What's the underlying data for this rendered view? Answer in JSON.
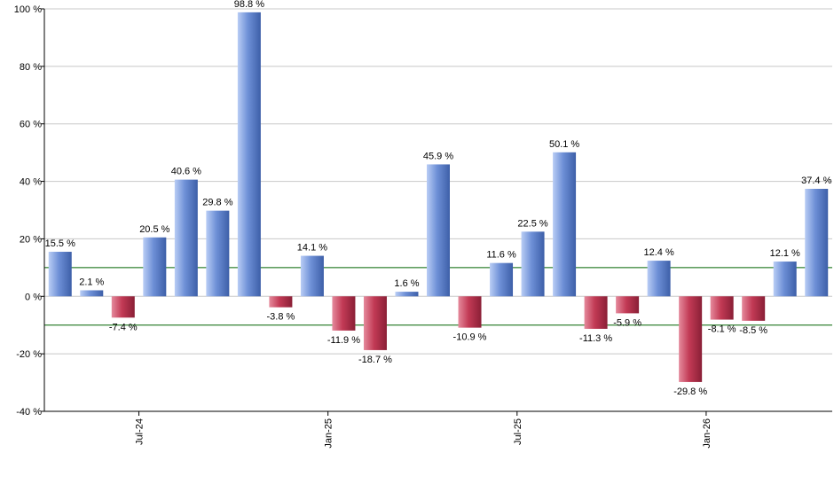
{
  "chart_data": {
    "type": "bar",
    "title": "",
    "xlabel": "",
    "ylabel": "",
    "ylim": [
      -40,
      100
    ],
    "yticks": [
      -40,
      -20,
      0,
      20,
      40,
      60,
      80,
      100
    ],
    "ytick_labels": [
      "-40 %",
      "-20 %",
      "0 %",
      "20 %",
      "40 %",
      "60 %",
      "80 %",
      "100 %"
    ],
    "x_tick_labels": [
      {
        "label": "Jul-24",
        "index": 2.5
      },
      {
        "label": "Jan-25",
        "index": 8.5
      },
      {
        "label": "Jul-25",
        "index": 14.5
      },
      {
        "label": "Jan-26",
        "index": 20.5
      }
    ],
    "values": [
      15.5,
      2.1,
      -7.4,
      20.5,
      40.6,
      29.8,
      98.8,
      -3.8,
      14.1,
      -11.9,
      -18.7,
      1.6,
      45.9,
      -10.9,
      11.6,
      22.5,
      50.1,
      -11.3,
      -5.9,
      12.4,
      -29.8,
      -8.1,
      -8.5,
      12.1,
      37.4
    ],
    "labels": [
      "15.5 %",
      "2.1 %",
      "-7.4 %",
      "20.5 %",
      "40.6 %",
      "29.8 %",
      "98.8 %",
      "-3.8 %",
      "14.1 %",
      "-11.9 %",
      "-18.7 %",
      "1.6 %",
      "45.9 %",
      "-10.9 %",
      "11.6 %",
      "22.5 %",
      "50.1 %",
      "-11.3 %",
      "-5.9 %",
      "12.4 %",
      "-29.8 %",
      "-8.1 %",
      "-8.5 %",
      "12.1 %",
      "37.4 %"
    ],
    "reference_lines": [
      10,
      -10
    ],
    "grid": true,
    "colors": {
      "positive": "#6d8fd6",
      "positive_light": "#b9cdf5",
      "positive_dark": "#3d5fa8",
      "negative": "#c23a55",
      "negative_light": "#e58a9c",
      "negative_dark": "#8a1f36",
      "reference_line": "#006400",
      "grid": "#c8c8c8",
      "axis": "#000000"
    }
  }
}
